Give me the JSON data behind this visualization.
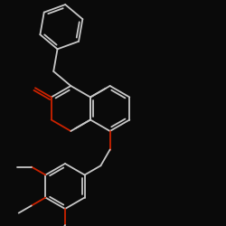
{
  "bg": "#0a0a0a",
  "bc": "#c8c8c8",
  "oc": "#cc2200",
  "lw": 1.3,
  "figsize": [
    2.5,
    2.5
  ],
  "dpi": 100,
  "xlim": [
    0,
    10
  ],
  "ylim": [
    0,
    10
  ]
}
